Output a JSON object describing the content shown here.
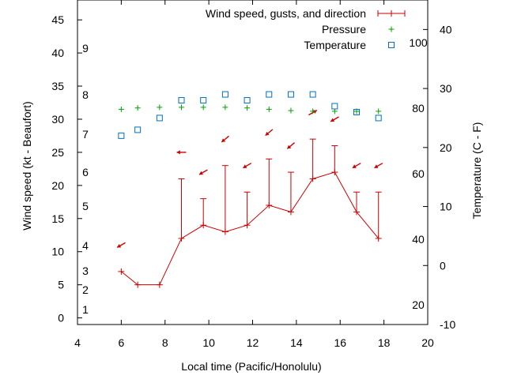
{
  "chart_data": {
    "type": "line",
    "xlabel": "Local time (Pacific/Honolulu)",
    "ylabel": "Wind speed (kt - Beaufort)",
    "y2label": "Temperature (C - F)",
    "xlim": [
      4,
      20
    ],
    "ylim": [
      -1,
      48
    ],
    "y2lim": [
      -10,
      45
    ],
    "x_ticks": [
      "4",
      "6",
      "8",
      "10",
      "12",
      "14",
      "16",
      "18",
      "20"
    ],
    "y_ticks": [
      "0",
      "5",
      "10",
      "15",
      "20",
      "25",
      "30",
      "35",
      "40",
      "45"
    ],
    "y2_ticks": [
      "-10",
      "0",
      "10",
      "20",
      "30",
      "40"
    ],
    "beaufort_labels": [
      "1",
      "2",
      "3",
      "4",
      "5",
      "6",
      "7",
      "8",
      "9"
    ],
    "fahrenheit_labels": [
      "20",
      "40",
      "60",
      "80",
      "100"
    ],
    "legend": {
      "position": "top-right",
      "entries": [
        "Wind speed, gusts, and direction",
        "Pressure",
        "Temperature"
      ]
    },
    "colors": {
      "wind": "#cc0000",
      "pressure": "#00a000",
      "temperature": "#0070c0"
    },
    "wind": {
      "x": [
        6,
        6.75,
        7.75,
        8.75,
        9.75,
        10.75,
        11.75,
        12.75,
        13.75,
        14.75,
        15.75,
        16.75,
        17.75
      ],
      "speed": [
        7,
        5,
        5,
        12,
        14,
        13,
        14,
        17,
        16,
        21,
        22,
        16,
        12
      ],
      "gust": [
        7,
        5,
        5,
        21,
        18,
        23,
        19,
        24,
        22,
        27,
        26,
        19,
        19
      ],
      "arrow_y": [
        11,
        null,
        null,
        25,
        22,
        27,
        23,
        28,
        26,
        31,
        30,
        23,
        23
      ],
      "arrow_angle_deg": [
        210,
        null,
        null,
        180,
        210,
        220,
        210,
        220,
        220,
        30,
        210,
        210,
        210
      ]
    },
    "pressure": {
      "x": [
        6,
        6.75,
        7.75,
        8.75,
        9.75,
        10.75,
        11.75,
        12.75,
        13.75,
        14.75,
        15.75,
        16.75,
        17.75
      ],
      "y": [
        31.5,
        31.7,
        31.8,
        31.8,
        31.8,
        31.8,
        31.7,
        31.5,
        31.3,
        31.2,
        31.2,
        31.2,
        31.2
      ]
    },
    "temperature": {
      "x": [
        6,
        6.75,
        7.75,
        8.75,
        9.75,
        10.75,
        11.75,
        12.75,
        13.75,
        14.75,
        15.75,
        16.75,
        17.75
      ],
      "y": [
        22,
        23,
        25,
        28,
        28,
        29,
        28,
        29,
        29,
        29,
        27,
        26,
        25
      ]
    }
  }
}
